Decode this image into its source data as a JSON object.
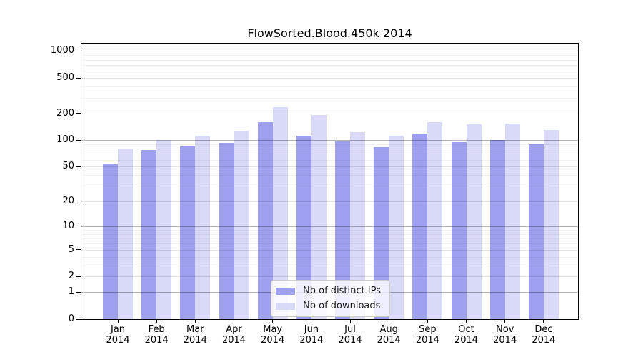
{
  "title": "FlowSorted.Blood.450k 2014",
  "chart_data": {
    "type": "bar",
    "title": "FlowSorted.Blood.450k 2014",
    "categories": [
      [
        "Jan",
        "2014"
      ],
      [
        "Feb",
        "2014"
      ],
      [
        "Mar",
        "2014"
      ],
      [
        "Apr",
        "2014"
      ],
      [
        "May",
        "2014"
      ],
      [
        "Jun",
        "2014"
      ],
      [
        "Jul",
        "2014"
      ],
      [
        "Aug",
        "2014"
      ],
      [
        "Sep",
        "2014"
      ],
      [
        "Oct",
        "2014"
      ],
      [
        "Nov",
        "2014"
      ],
      [
        "Dec",
        "2014"
      ]
    ],
    "series": [
      {
        "name": "Nb of distinct IPs",
        "color": "#9f9ff0",
        "values": [
          53,
          77,
          85,
          93,
          158,
          111,
          96,
          83,
          119,
          94,
          100,
          89
        ]
      },
      {
        "name": "Nb of downloads",
        "color": "#d9d9f8",
        "values": [
          80,
          100,
          112,
          128,
          237,
          190,
          124,
          112,
          158,
          150,
          154,
          131
        ]
      }
    ],
    "y_axis": {
      "scale": "log1p",
      "ticks": [
        1000,
        500,
        200,
        100,
        50,
        20,
        10,
        5,
        2,
        1,
        0
      ],
      "ylim": [
        0,
        1200
      ]
    },
    "xlabel": "",
    "ylabel": "",
    "legend": {
      "position": "inside-bottom-center",
      "entries": [
        "Nb of distinct IPs",
        "Nb of downloads"
      ]
    },
    "grid": true
  }
}
